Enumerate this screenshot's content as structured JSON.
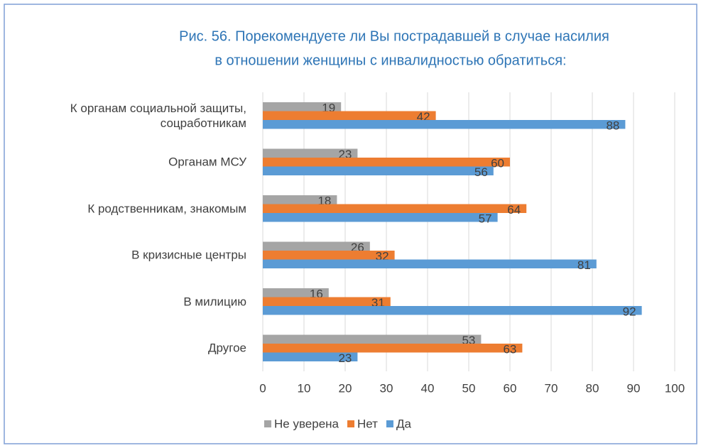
{
  "chart_data": {
    "type": "hbar",
    "title": [
      "Рис. 56. Порекомендуете ли Вы пострадавшей  в случае насилия",
      "в отношении женщины с инвалидностью  обратиться:"
    ],
    "categories": [
      "К органам социальной защиты, соцработникам",
      "Органам МСУ",
      "К родственникам, знакомым",
      "В кризисные центры",
      "В милицию",
      "Другое"
    ],
    "series": [
      {
        "name": "Не уверена",
        "color": "#a5a5a5",
        "values": [
          19,
          23,
          18,
          26,
          16,
          53
        ]
      },
      {
        "name": "Нет",
        "color": "#ed7d31",
        "values": [
          42,
          60,
          64,
          32,
          31,
          63
        ]
      },
      {
        "name": "Да",
        "color": "#5b9bd5",
        "values": [
          88,
          56,
          57,
          81,
          92,
          23
        ]
      }
    ],
    "xlim": [
      0,
      100
    ],
    "xticks": [
      0,
      10,
      20,
      30,
      40,
      50,
      60,
      70,
      80,
      90,
      100
    ],
    "grid": true
  }
}
